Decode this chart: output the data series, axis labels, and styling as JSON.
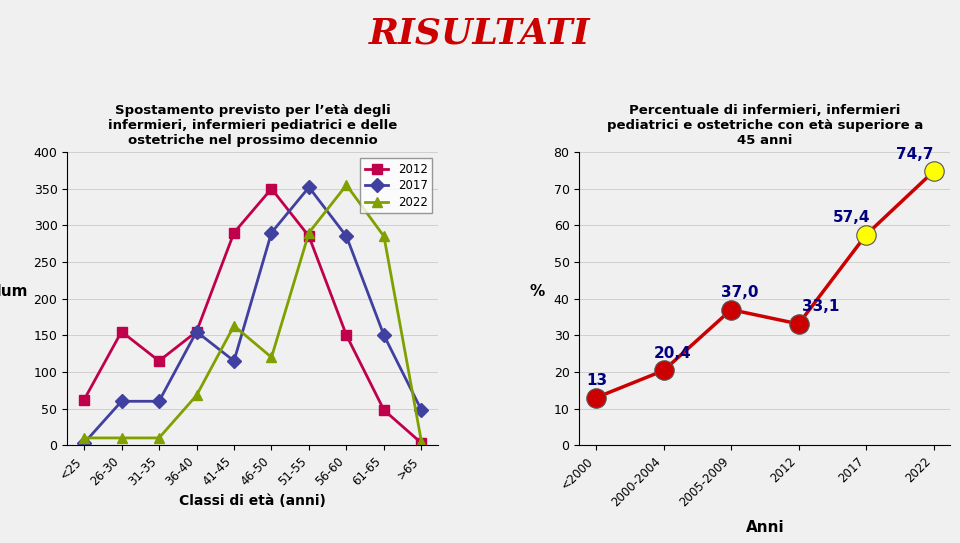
{
  "title_main": "RISULTATI",
  "left_chart": {
    "title": "Spostamento previsto per l’età degli\ninfermieri, infermieri pediatrici e delle\nostetriche nel prossimo decennio",
    "xlabel": "Classi di età (anni)",
    "ylabel": "Num",
    "categories": [
      "<25",
      "26-30",
      "31-35",
      "36-40",
      "41-45",
      "46-50",
      "51-55",
      "56-60",
      "61-65",
      ">65"
    ],
    "series": {
      "2012": [
        62,
        155,
        115,
        155,
        290,
        350,
        285,
        150,
        48,
        3
      ],
      "2017": [
        3,
        60,
        60,
        155,
        115,
        290,
        352,
        285,
        150,
        48
      ],
      "2022": [
        10,
        10,
        10,
        68,
        163,
        120,
        290,
        355,
        285,
        5
      ]
    },
    "colors": {
      "2012": "#c0004b",
      "2017": "#4040a0",
      "2022": "#80a000"
    },
    "markers": {
      "2012": "s",
      "2017": "D",
      "2022": "^"
    },
    "ylim": [
      0,
      400
    ],
    "yticks": [
      0,
      50,
      100,
      150,
      200,
      250,
      300,
      350,
      400
    ]
  },
  "right_chart": {
    "title": "Percentuale di infermieri, infermieri\npediatrici e ostetriche con età superiore a\n45 anni",
    "xlabel": "Anni",
    "ylabel": "%",
    "categories": [
      "<2000",
      "2000-2004",
      "2005-2009",
      "2012",
      "2017",
      "2022"
    ],
    "values": [
      13,
      20.4,
      37.0,
      33.1,
      57.4,
      74.7
    ],
    "labels": [
      "13",
      "20,4",
      "37,0",
      "33,1",
      "57,4",
      "74,7"
    ],
    "line_color": "#cc0000",
    "marker_colors": [
      "#cc0000",
      "#cc0000",
      "#cc0000",
      "#cc0000",
      "#ffff00",
      "#ffff00"
    ],
    "marker_size": 14,
    "label_color": "#000080",
    "ylim": [
      0,
      80
    ],
    "yticks": [
      0,
      10,
      20,
      30,
      40,
      50,
      60,
      70,
      80
    ]
  },
  "background_color": "#f0f0f0"
}
